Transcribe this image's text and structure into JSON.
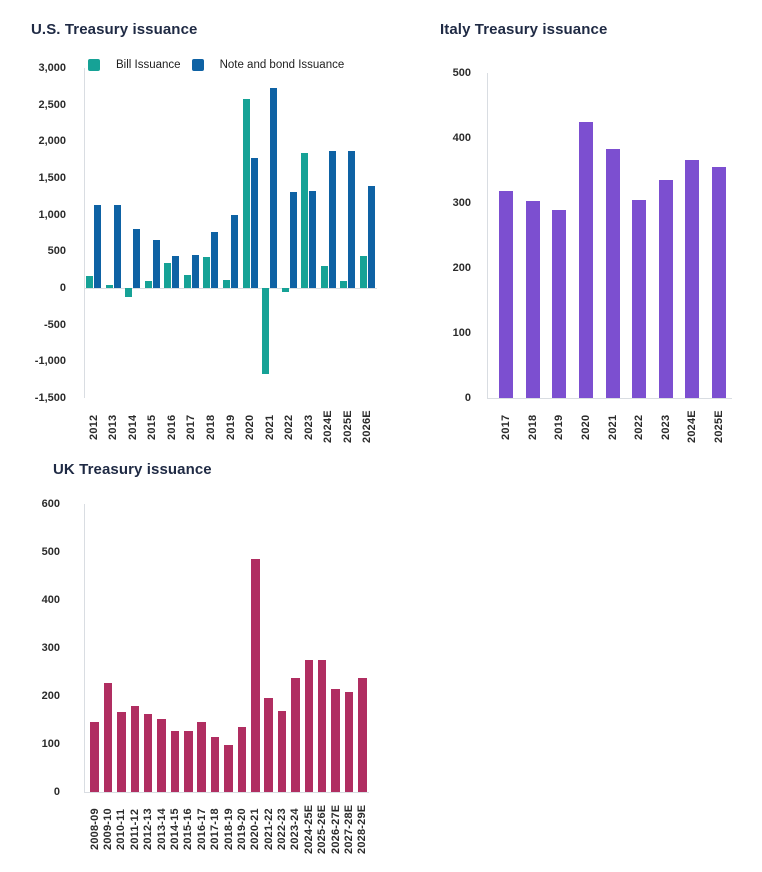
{
  "style": {
    "background": "#ffffff",
    "title_color": "#1f2a44",
    "tick_color": "#2b2b2b",
    "legend_text_color": "#1e1e1e",
    "axis_line_color": "#d9dde2",
    "bill_color": "#16a296",
    "note_color": "#0e62a4",
    "italy_color": "#7c4fd0",
    "uk_color": "#b02e61"
  },
  "chart_data": [
    {
      "id": "us-treasury",
      "type": "bar",
      "title": "U.S. Treasury issuance",
      "legend_position": "top",
      "grid": false,
      "ylim": [
        -1500,
        3000
      ],
      "yticks": [
        3000,
        2500,
        2000,
        1500,
        1000,
        500,
        0,
        -500,
        -1000,
        -1500
      ],
      "categories": [
        "2012",
        "2013",
        "2014",
        "2015",
        "2016",
        "2017",
        "2018",
        "2019",
        "2020",
        "2021",
        "2022",
        "2023",
        "2024E",
        "2025E",
        "2026E"
      ],
      "series": [
        {
          "name": "Bill Issuance",
          "color": "#16a296",
          "values": [
            158,
            45,
            -120,
            90,
            345,
            172,
            417,
            113,
            2580,
            -1170,
            -60,
            1840,
            305,
            90,
            440
          ]
        },
        {
          "name": "Note and bond Issuance",
          "color": "#0e62a4",
          "values": [
            1136,
            1136,
            810,
            660,
            431,
            445,
            758,
            990,
            1775,
            2730,
            1315,
            1320,
            1875,
            1865,
            1395
          ]
        }
      ]
    },
    {
      "id": "italy-treasury",
      "type": "bar",
      "title": "Italy Treasury issuance",
      "grid": false,
      "ylim": [
        0,
        500
      ],
      "yticks": [
        500,
        400,
        300,
        200,
        100,
        0
      ],
      "categories": [
        "2017",
        "2018",
        "2019",
        "2020",
        "2021",
        "2022",
        "2023",
        "2024E",
        "2025E"
      ],
      "series": [
        {
          "color": "#7c4fd0",
          "values": [
            318,
            303,
            290,
            425,
            383,
            305,
            335,
            366,
            355
          ]
        }
      ]
    },
    {
      "id": "uk-treasury",
      "type": "bar",
      "title": "UK Treasury issuance",
      "grid": false,
      "ylim": [
        0,
        600
      ],
      "yticks": [
        600,
        500,
        400,
        300,
        200,
        100,
        0
      ],
      "categories": [
        "2008-09",
        "2009-10",
        "2010-11",
        "2011-12",
        "2012-13",
        "2013-14",
        "2014-15",
        "2015-16",
        "2016-17",
        "2017-18",
        "2018-19",
        "2019-20",
        "2020-21",
        "2021-22",
        "2022-23",
        "2023-24",
        "2024-25E",
        "2025-26E",
        "2026-27E",
        "2027-28E",
        "2028-29E"
      ],
      "series": [
        {
          "color": "#b02e61",
          "values": [
            146,
            227,
            167,
            180,
            162,
            153,
            127,
            128,
            146,
            114,
            97,
            135,
            485,
            195,
            168,
            237,
            276,
            276,
            214,
            209,
            238
          ]
        }
      ]
    }
  ]
}
